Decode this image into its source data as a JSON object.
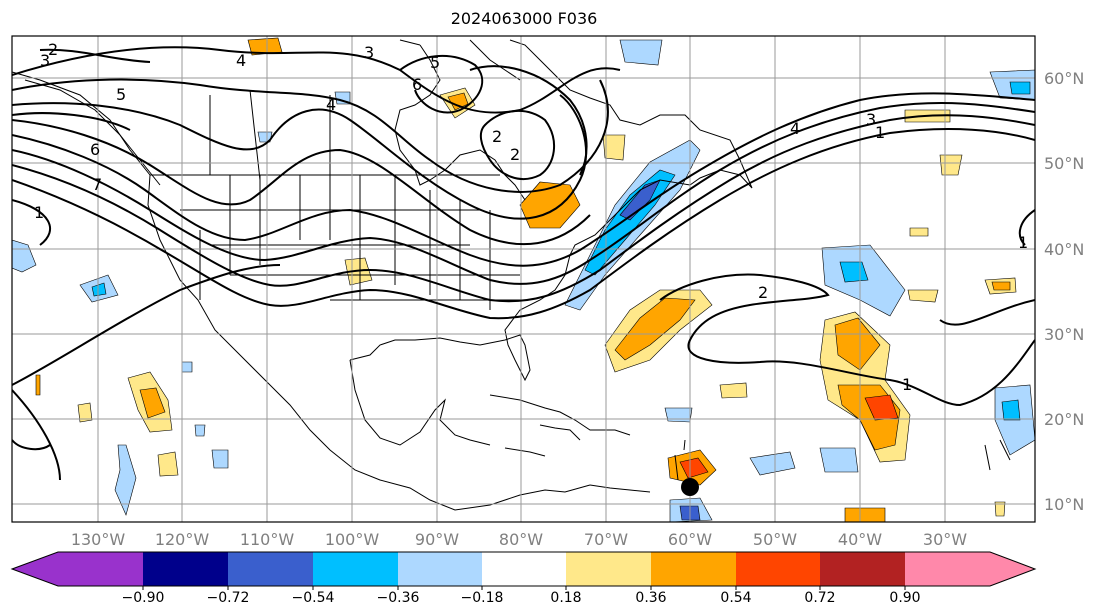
{
  "title": "2024063000 F036",
  "latitude_labels": [
    "60°N",
    "50°N",
    "40°N",
    "30°N",
    "20°N",
    "10°N"
  ],
  "longitude_labels": [
    "130°W",
    "120°W",
    "110°W",
    "100°W",
    "90°W",
    "80°W",
    "70°W",
    "60°W",
    "50°W",
    "40°W",
    "30°W"
  ],
  "contour_labels": [
    "2",
    "3",
    "4",
    "5",
    "6",
    "7",
    "1",
    "2",
    "3",
    "4",
    "1",
    "1",
    "2",
    "3",
    "5",
    "6",
    "4",
    "1",
    "2"
  ],
  "colorbar": {
    "tick_labels": [
      "−0.90",
      "−0.72",
      "−0.54",
      "−0.36",
      "−0.18",
      "0.18",
      "0.36",
      "0.54",
      "0.72",
      "0.90"
    ],
    "colors": [
      "#9932cc",
      "#00008b",
      "#3a5fcd",
      "#00bfff",
      "#add8ff",
      "#ffffff",
      "#ffe88a",
      "#ffa500",
      "#ff4500",
      "#b22222",
      "#ff88aa"
    ]
  },
  "marker": {
    "lon": "60°W",
    "lat": "12°N"
  }
}
